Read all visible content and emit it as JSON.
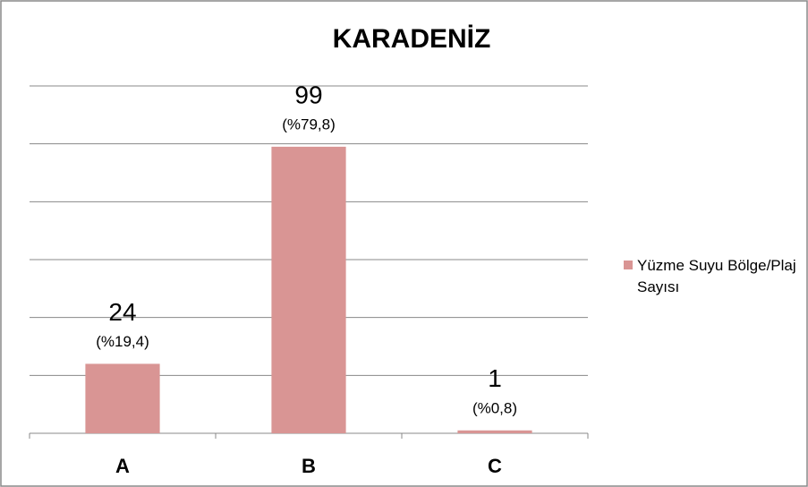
{
  "chart_data": {
    "type": "bar",
    "title": "KARADENİZ",
    "categories": [
      "A",
      "B",
      "C"
    ],
    "series": [
      {
        "name": "Yüzme Suyu Bölge/Plaj Sayısı",
        "color": "#d99594",
        "values": [
          24,
          99,
          1
        ]
      }
    ],
    "percent_labels": [
      "(%19,4)",
      "(%79,8)",
      "(%0,8)"
    ],
    "ylim": [
      0,
      120
    ],
    "yticks": [
      0,
      20,
      40,
      60,
      80,
      100,
      120
    ],
    "grid": true,
    "show_tick_labels": false,
    "legend": "right"
  }
}
